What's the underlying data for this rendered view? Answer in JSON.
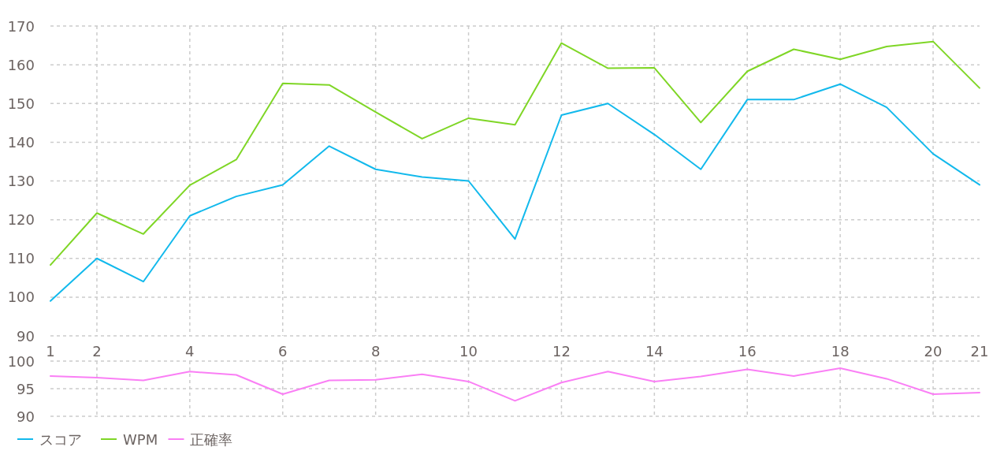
{
  "chart_data": [
    {
      "type": "line",
      "x": [
        1,
        2,
        3,
        4,
        5,
        6,
        7,
        8,
        9,
        10,
        11,
        12,
        13,
        14,
        15,
        16,
        17,
        18,
        19,
        20,
        21
      ],
      "xlim": [
        1,
        21
      ],
      "xticks": [
        1,
        2,
        4,
        6,
        8,
        10,
        12,
        14,
        16,
        18,
        20,
        21
      ],
      "ylim": [
        90,
        170
      ],
      "yticks": [
        90,
        100,
        110,
        120,
        130,
        140,
        150,
        160,
        170
      ],
      "grid": true,
      "legend": "bottom",
      "series": [
        {
          "name": "スコア",
          "color": "#12b9ec",
          "values": [
            99,
            110,
            104,
            121,
            126,
            129,
            139,
            133,
            131,
            130,
            115,
            147,
            150,
            142,
            133,
            151,
            151,
            155,
            149,
            137,
            129
          ]
        },
        {
          "name": "WPM",
          "color": "#7fd626",
          "values": [
            108.3,
            121.7,
            116.3,
            128.9,
            135.5,
            155.2,
            154.8,
            147.8,
            140.9,
            146.2,
            144.5,
            165.6,
            159.1,
            159.2,
            145.1,
            158.3,
            164,
            161.4,
            164.7,
            166,
            154
          ]
        }
      ]
    },
    {
      "type": "line",
      "x": [
        1,
        2,
        3,
        4,
        5,
        6,
        7,
        8,
        9,
        10,
        11,
        12,
        13,
        14,
        15,
        16,
        17,
        18,
        19,
        20,
        21
      ],
      "xlim": [
        1,
        21
      ],
      "xticks": [
        1,
        2,
        4,
        6,
        8,
        10,
        12,
        14,
        16,
        18,
        20,
        21
      ],
      "ylim": [
        90,
        100
      ],
      "yticks": [
        90,
        95,
        100
      ],
      "grid": true,
      "tick_labels": "y",
      "legend": "bottom",
      "series": [
        {
          "name": "正確率",
          "color": "#fa7ff5",
          "values": [
            97.3,
            97,
            96.5,
            98.1,
            97.5,
            94,
            96.5,
            96.6,
            97.6,
            96.3,
            92.8,
            96.1,
            98.1,
            96.3,
            97.2,
            98.5,
            97.3,
            98.7,
            96.8,
            94,
            94.3
          ]
        }
      ]
    }
  ]
}
